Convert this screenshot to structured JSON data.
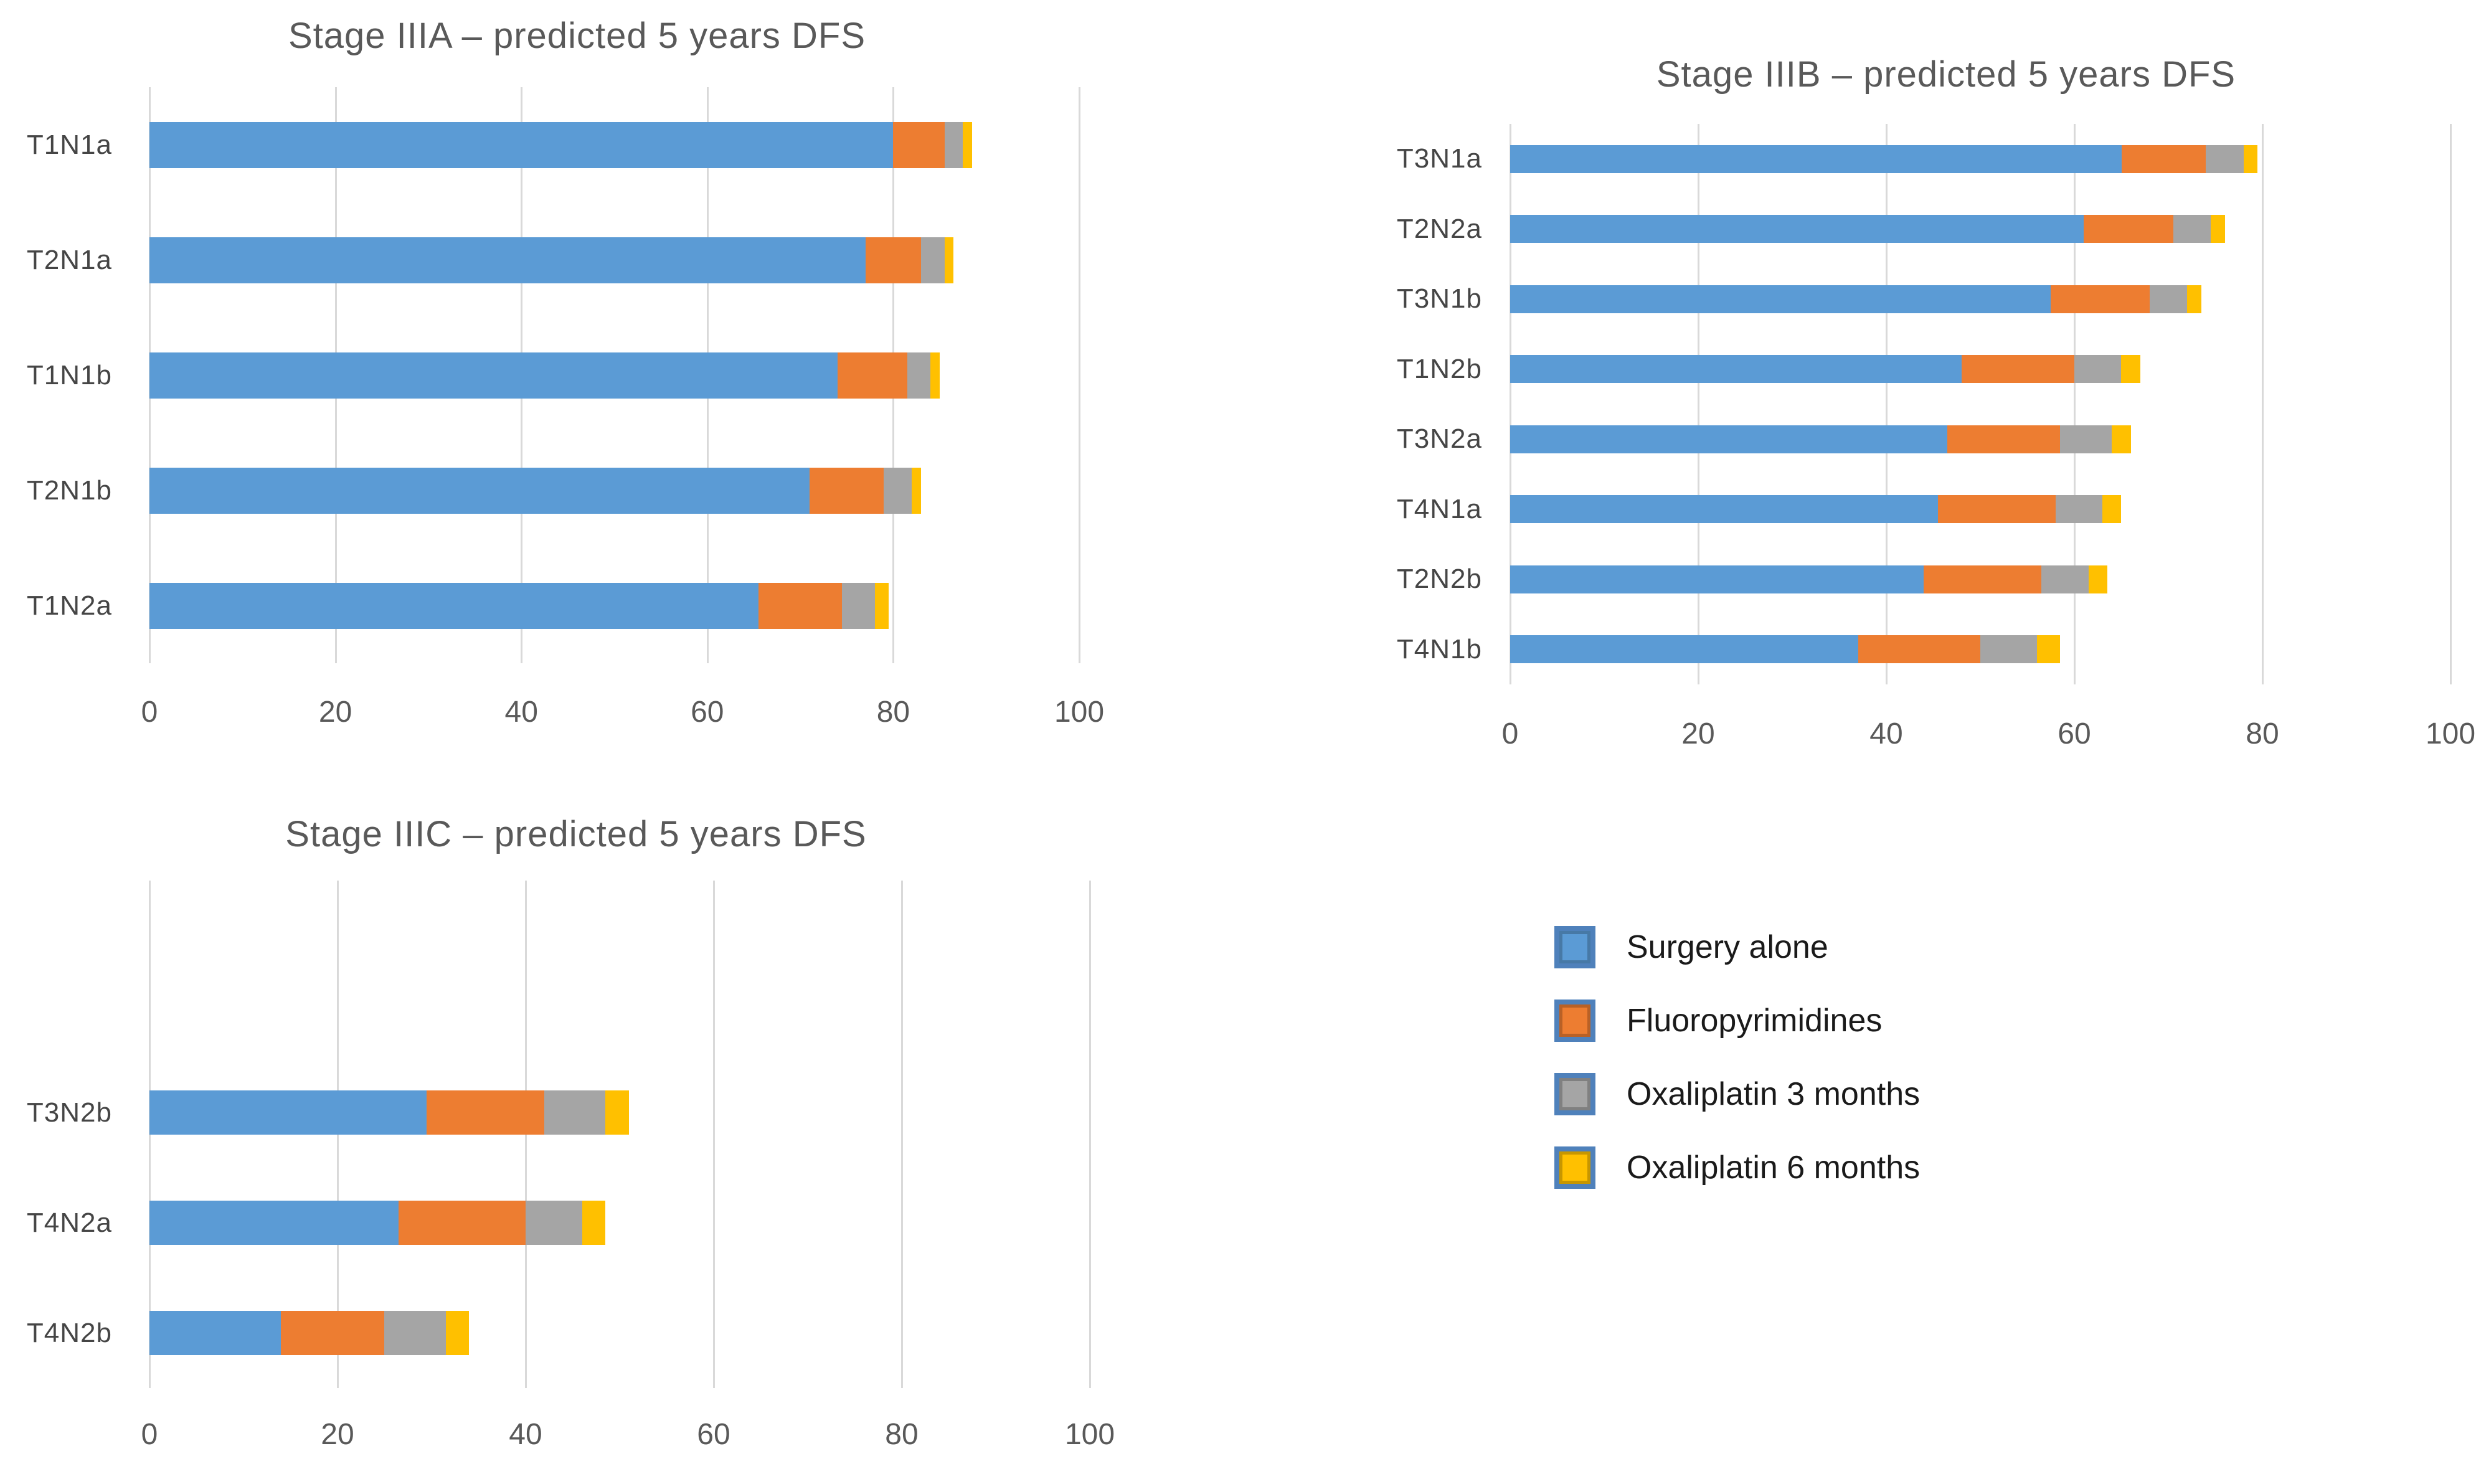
{
  "page": {
    "background": "#FFFFFF"
  },
  "palette": {
    "surgery_alone": "#5B9BD5",
    "fluoropyrimidines": "#ED7D31",
    "oxaliplatin_3_months": "#A5A5A5",
    "oxaliplatin_6_months": "#FFC000",
    "gridline": "#D9D9D9",
    "title_text": "#595959",
    "tick_text": "#595959",
    "category_text": "#454545",
    "legend_text": "#1A1A1A",
    "legend_swatch_border": "#4F81BB"
  },
  "axis": {
    "max": 100,
    "ticks": [
      0,
      20,
      40,
      60,
      80,
      100
    ],
    "tick_labels": [
      "0",
      "20",
      "40",
      "60",
      "80",
      "100"
    ]
  },
  "legend": {
    "position": "bottom-right",
    "items": [
      {
        "label": "Surgery alone",
        "slug": "surgery-alone",
        "color": "#5B9BD5"
      },
      {
        "label": "Fluoropyrimidines",
        "slug": "fluoropyrimidines",
        "color": "#ED7D31"
      },
      {
        "label": "Oxaliplatin 3 months",
        "slug": "oxaliplatin-3-months",
        "color": "#A5A5A5"
      },
      {
        "label": "Oxaliplatin 6 months",
        "slug": "oxaliplatin-6-months",
        "color": "#FFC000"
      }
    ]
  },
  "chart_data": [
    {
      "type": "bar",
      "orientation": "horizontal",
      "stacked": true,
      "grid": true,
      "title": "Stage IIIA – predicted 5 years DFS",
      "xlabel": "",
      "ylabel": "",
      "xlim": [
        0,
        100
      ],
      "categories": [
        "T1N1a",
        "T2N1a",
        "T1N1b",
        "T2N1b",
        "T1N2a"
      ],
      "series": [
        {
          "name": "Surgery alone",
          "values": [
            80,
            77,
            74,
            71,
            65.5
          ]
        },
        {
          "name": "Fluoropyrimidines",
          "values": [
            5.5,
            6,
            7.5,
            8,
            9
          ]
        },
        {
          "name": "Oxaliplatin 3 months",
          "values": [
            2,
            2.5,
            2.5,
            3,
            3.5
          ]
        },
        {
          "name": "Oxaliplatin 6 months",
          "values": [
            1,
            1,
            1,
            1,
            1.5
          ]
        }
      ],
      "stacked_totals": [
        88.5,
        86.5,
        85,
        83,
        79.5
      ]
    },
    {
      "type": "bar",
      "orientation": "horizontal",
      "stacked": true,
      "grid": true,
      "title": "Stage IIIB – predicted 5 years DFS",
      "xlabel": "",
      "ylabel": "",
      "xlim": [
        0,
        100
      ],
      "categories": [
        "T3N1a",
        "T2N2a",
        "T3N1b",
        "T1N2b",
        "T3N2a",
        "T4N1a",
        "T2N2b",
        "T4N1b"
      ],
      "series": [
        {
          "name": "Surgery alone",
          "values": [
            65,
            61,
            57.5,
            48,
            46.5,
            45.5,
            44,
            37
          ]
        },
        {
          "name": "Fluoropyrimidines",
          "values": [
            9,
            9.5,
            10.5,
            12,
            12,
            12.5,
            12.5,
            13
          ]
        },
        {
          "name": "Oxaliplatin 3 months",
          "values": [
            4,
            4,
            4,
            5,
            5.5,
            5,
            5,
            6
          ]
        },
        {
          "name": "Oxaliplatin 6 months",
          "values": [
            1.5,
            1.5,
            1.5,
            2,
            2,
            2,
            2,
            2.5
          ]
        }
      ],
      "stacked_totals": [
        79.5,
        76,
        73.5,
        67,
        66,
        65,
        63.5,
        58.5
      ]
    },
    {
      "type": "bar",
      "orientation": "horizontal",
      "stacked": true,
      "grid": true,
      "title": "Stage IIIC – predicted 5 years DFS",
      "xlabel": "",
      "ylabel": "",
      "xlim": [
        0,
        100
      ],
      "categories": [
        "T3N2b",
        "T4N2a",
        "T4N2b"
      ],
      "series": [
        {
          "name": "Surgery alone",
          "values": [
            29.5,
            26.5,
            14
          ]
        },
        {
          "name": "Fluoropyrimidines",
          "values": [
            12.5,
            13.5,
            11
          ]
        },
        {
          "name": "Oxaliplatin 3 months",
          "values": [
            6.5,
            6,
            6.5
          ]
        },
        {
          "name": "Oxaliplatin 6 months",
          "values": [
            2.5,
            2.5,
            2.5
          ]
        }
      ],
      "stacked_totals": [
        51,
        48.5,
        34
      ]
    }
  ]
}
